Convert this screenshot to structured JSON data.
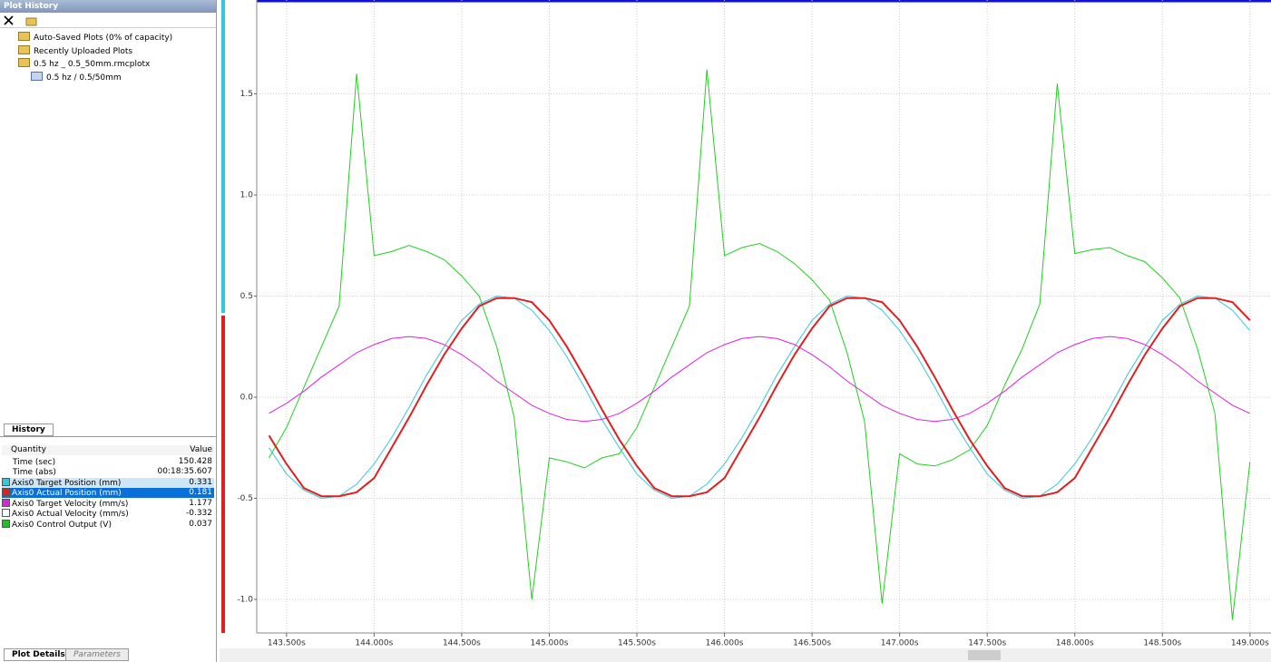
{
  "panel": {
    "title": "Plot History",
    "tree": [
      {
        "label": "Auto-Saved Plots (0% of capacity)",
        "level": 0
      },
      {
        "label": "Recently Uploaded Plots",
        "level": 0
      },
      {
        "label": "0.5 hz _ 0.5_50mm.rmcplotx",
        "level": 0
      },
      {
        "label": "0.5 hz / 0.5/50mm",
        "level": 1
      }
    ],
    "tab": "History",
    "table": {
      "header": [
        "Quantity",
        "Value"
      ],
      "rows": [
        {
          "name": "Time (sec)",
          "value": "150.428",
          "color": null
        },
        {
          "name": "Time (abs)",
          "value": "00:18:35.607",
          "color": null
        },
        {
          "name": "Axis0 Target Position (mm)",
          "value": "0.331",
          "color": "#33c8dc"
        },
        {
          "name": "Axis0 Actual Position (mm)",
          "value": "0.181",
          "color": "#e02020"
        },
        {
          "name": "Axis0 Target Velocity (mm/s)",
          "value": "1.177",
          "color": "#e020e0"
        },
        {
          "name": "Axis0 Actual Velocity (mm/s)",
          "value": "-0.332",
          "color": "#ffffff"
        },
        {
          "name": "Axis0 Control Output (V)",
          "value": "0.037",
          "color": "#20c020"
        }
      ],
      "selected": 3
    },
    "bottom_tabs": [
      "Plot Details",
      "Parameters"
    ]
  },
  "chart_data": {
    "type": "line",
    "x": [
      143.4,
      143.5,
      143.6,
      143.7,
      143.8,
      143.9,
      144.0,
      144.1,
      144.2,
      144.3,
      144.4,
      144.5,
      144.6,
      144.7,
      144.8,
      144.9,
      145.0,
      145.1,
      145.2,
      145.3,
      145.4,
      145.5,
      145.6,
      145.7,
      145.8,
      145.9,
      146.0,
      146.1,
      146.2,
      146.3,
      146.4,
      146.5,
      146.6,
      146.7,
      146.8,
      146.9,
      147.0,
      147.1,
      147.2,
      147.3,
      147.4,
      147.5,
      147.6,
      147.7,
      147.8,
      147.9,
      148.0,
      148.1,
      148.2,
      148.3,
      148.4,
      148.5,
      148.6,
      148.7,
      148.8,
      148.9,
      149.0
    ],
    "series": [
      {
        "color": "#20d020",
        "values": [
          -0.3,
          -0.15,
          0.05,
          0.25,
          0.45,
          1.6,
          0.7,
          0.72,
          0.75,
          0.72,
          0.68,
          0.6,
          0.5,
          0.25,
          -0.1,
          -1.0,
          -0.3,
          -0.32,
          -0.35,
          -0.3,
          -0.28,
          -0.15,
          0.05,
          0.25,
          0.45,
          1.62,
          0.7,
          0.74,
          0.76,
          0.72,
          0.66,
          0.58,
          0.48,
          0.22,
          -0.12,
          -1.02,
          -0.28,
          -0.33,
          -0.34,
          -0.31,
          -0.26,
          -0.14,
          0.06,
          0.24,
          0.46,
          1.55,
          0.71,
          0.73,
          0.74,
          0.7,
          0.67,
          0.59,
          0.49,
          0.24,
          -0.08,
          -1.1,
          -0.32
        ]
      },
      {
        "color": "#33c8dc",
        "values": [
          -0.25,
          -0.38,
          -0.46,
          -0.5,
          -0.49,
          -0.43,
          -0.33,
          -0.2,
          -0.05,
          0.11,
          0.25,
          0.38,
          0.46,
          0.5,
          0.49,
          0.43,
          0.33,
          0.2,
          0.05,
          -0.11,
          -0.25,
          -0.38,
          -0.46,
          -0.5,
          -0.49,
          -0.43,
          -0.33,
          -0.2,
          -0.05,
          0.11,
          0.25,
          0.38,
          0.46,
          0.5,
          0.49,
          0.43,
          0.33,
          0.2,
          0.05,
          -0.11,
          -0.25,
          -0.38,
          -0.46,
          -0.5,
          -0.49,
          -0.43,
          -0.33,
          -0.2,
          -0.05,
          0.11,
          0.25,
          0.38,
          0.46,
          0.5,
          0.49,
          0.43,
          0.33
        ]
      },
      {
        "color": "#e020e0",
        "values": [
          -0.08,
          -0.03,
          0.03,
          0.1,
          0.16,
          0.22,
          0.26,
          0.29,
          0.3,
          0.29,
          0.26,
          0.21,
          0.15,
          0.08,
          0.02,
          -0.04,
          -0.08,
          -0.11,
          -0.12,
          -0.11,
          -0.08,
          -0.03,
          0.03,
          0.1,
          0.16,
          0.22,
          0.26,
          0.29,
          0.3,
          0.29,
          0.26,
          0.21,
          0.15,
          0.08,
          0.02,
          -0.04,
          -0.08,
          -0.11,
          -0.12,
          -0.11,
          -0.08,
          -0.03,
          0.03,
          0.1,
          0.16,
          0.22,
          0.26,
          0.29,
          0.3,
          0.29,
          0.26,
          0.21,
          0.15,
          0.08,
          0.02,
          -0.04,
          -0.08
        ]
      },
      {
        "color": "#e02020",
        "values": [
          -0.19,
          -0.33,
          -0.45,
          -0.49,
          -0.49,
          -0.47,
          -0.4,
          -0.25,
          -0.1,
          0.06,
          0.21,
          0.34,
          0.45,
          0.49,
          0.49,
          0.47,
          0.38,
          0.25,
          0.1,
          -0.06,
          -0.21,
          -0.34,
          -0.45,
          -0.49,
          -0.49,
          -0.47,
          -0.4,
          -0.25,
          -0.1,
          0.06,
          0.21,
          0.34,
          0.45,
          0.49,
          0.49,
          0.47,
          0.38,
          0.25,
          0.1,
          -0.06,
          -0.21,
          -0.34,
          -0.45,
          -0.49,
          -0.49,
          -0.47,
          -0.4,
          -0.25,
          -0.1,
          0.06,
          0.21,
          0.34,
          0.45,
          0.49,
          0.49,
          0.47,
          0.38
        ]
      }
    ],
    "xlim": [
      143.33,
      149.12
    ],
    "ylim": [
      -1.166,
      1.964
    ],
    "xticks": [
      {
        "value": 143.5,
        "label": "143.500s"
      },
      {
        "value": 144.0,
        "label": "144.000s"
      },
      {
        "value": 144.5,
        "label": "144.500s"
      },
      {
        "value": 145.0,
        "label": "145.000s"
      },
      {
        "value": 145.5,
        "label": "145.500s"
      },
      {
        "value": 146.0,
        "label": "146.000s"
      },
      {
        "value": 146.5,
        "label": "146.500s"
      },
      {
        "value": 147.0,
        "label": "147.000s"
      },
      {
        "value": 147.5,
        "label": "147.500s"
      },
      {
        "value": 148.0,
        "label": "148.000s"
      },
      {
        "value": 148.5,
        "label": "148.500s"
      },
      {
        "value": 149.0,
        "label": "149.000s"
      }
    ],
    "yticks": [
      {
        "value": -1.0,
        "label": "-1.0"
      },
      {
        "value": -0.5,
        "label": "-0.5"
      },
      {
        "value": 0.0,
        "label": "0.0"
      },
      {
        "value": 0.5,
        "label": "0.5"
      },
      {
        "value": 1.0,
        "label": "1.0"
      },
      {
        "value": 1.5,
        "label": "1.5"
      }
    ],
    "grid": true
  }
}
